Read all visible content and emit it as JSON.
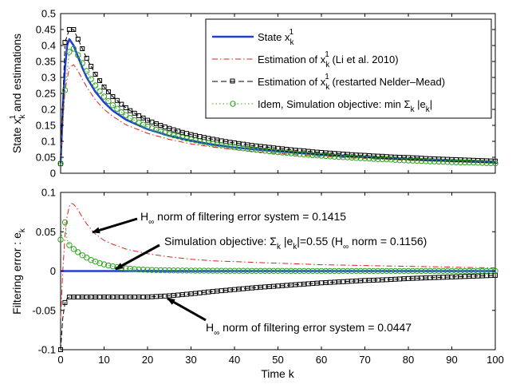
{
  "colors": {
    "state": "#1f3fd6",
    "li": "#e0201b",
    "nm": "#000000",
    "idem": "#2ea31e"
  },
  "chart_data": [
    {
      "type": "line",
      "ylabel": "State x_k^1 and estimations",
      "xlim": [
        0,
        100
      ],
      "ylim": [
        0,
        0.5
      ],
      "xticks": [
        "0",
        "10",
        "20",
        "30",
        "40",
        "50",
        "60",
        "70",
        "80",
        "90",
        "100"
      ],
      "yticks": [
        "0",
        "0.05",
        "0.1",
        "0.15",
        "0.2",
        "0.25",
        "0.3",
        "0.35",
        "0.4",
        "0.45",
        "0.5"
      ],
      "legend": [
        {
          "name": "State x",
          "sub": "k",
          "sup": "1",
          "rest": ""
        },
        {
          "name": "Estimation of x",
          "sub": "k",
          "sup": "1",
          "rest": " (Li et al. 2010)"
        },
        {
          "name": "Estimation of x",
          "sub": "k",
          "sup": "1",
          "rest": " (restarted Nelder–Mead)"
        },
        {
          "name": "Idem, Simulation objective: min Σ",
          "sub": "k",
          "sup": "",
          "rest": " |e",
          "sub2": "k",
          "rest2": "|"
        }
      ],
      "series": [
        {
          "name": "State x_k^1",
          "style": "state",
          "x": [
            0,
            0.5,
            1,
            1.5,
            2,
            3,
            4,
            5,
            6,
            8,
            10,
            12,
            15,
            20,
            25,
            30,
            35,
            40,
            45,
            50,
            55,
            60,
            65,
            70,
            75,
            80,
            85,
            90,
            95,
            100
          ],
          "y": [
            0.03,
            0.2,
            0.33,
            0.4,
            0.42,
            0.4,
            0.365,
            0.33,
            0.3,
            0.255,
            0.222,
            0.196,
            0.168,
            0.138,
            0.117,
            0.102,
            0.09,
            0.081,
            0.074,
            0.068,
            0.063,
            0.058,
            0.054,
            0.051,
            0.048,
            0.045,
            0.042,
            0.04,
            0.038,
            0.036
          ]
        },
        {
          "name": "Estimation of x_k^1 (Li et al. 2010)",
          "style": "li",
          "x": [
            0,
            0.5,
            1,
            2,
            3,
            4,
            5,
            6,
            8,
            10,
            12,
            15,
            20,
            25,
            30,
            35,
            40,
            45,
            50,
            55,
            60,
            65,
            70,
            75,
            80,
            85,
            90,
            95,
            100
          ],
          "y": [
            0.05,
            0.16,
            0.26,
            0.33,
            0.34,
            0.32,
            0.295,
            0.27,
            0.23,
            0.2,
            0.178,
            0.152,
            0.125,
            0.106,
            0.092,
            0.082,
            0.074,
            0.067,
            0.062,
            0.057,
            0.053,
            0.049,
            0.046,
            0.043,
            0.041,
            0.039,
            0.037,
            0.035,
            0.033
          ]
        },
        {
          "name": "Estimation of x_k^1 (restarted Nelder-Mead)",
          "style": "nm",
          "x": [
            0,
            1,
            2,
            3,
            4,
            5,
            6,
            7,
            8,
            9,
            10,
            11,
            12,
            13,
            14,
            15,
            16,
            17,
            18,
            19,
            20,
            22,
            24,
            26,
            28,
            30,
            32,
            34,
            36,
            38,
            40,
            42,
            44,
            46,
            48,
            50,
            52,
            54,
            56,
            58,
            60,
            62,
            64,
            66,
            68,
            70,
            72,
            74,
            76,
            78,
            80,
            82,
            84,
            86,
            88,
            90,
            92,
            94,
            96,
            98,
            100
          ],
          "y": [
            0.03,
            0.41,
            0.45,
            0.45,
            0.42,
            0.39,
            0.36,
            0.335,
            0.31,
            0.29,
            0.27,
            0.255,
            0.24,
            0.228,
            0.216,
            0.205,
            0.196,
            0.188,
            0.18,
            0.173,
            0.166,
            0.155,
            0.145,
            0.136,
            0.128,
            0.121,
            0.115,
            0.109,
            0.104,
            0.099,
            0.095,
            0.091,
            0.087,
            0.084,
            0.081,
            0.078,
            0.075,
            0.072,
            0.07,
            0.067,
            0.065,
            0.063,
            0.061,
            0.059,
            0.057,
            0.056,
            0.054,
            0.053,
            0.051,
            0.05,
            0.049,
            0.048,
            0.046,
            0.045,
            0.044,
            0.043,
            0.042,
            0.041,
            0.04,
            0.039,
            0.038
          ]
        },
        {
          "name": "Idem, Simulation objective: min Sum_k |e_k|",
          "style": "idem",
          "x": [
            0,
            1,
            2,
            3,
            4,
            5,
            6,
            7,
            8,
            9,
            10,
            11,
            12,
            13,
            14,
            15,
            16,
            17,
            18,
            19,
            20,
            22,
            24,
            26,
            28,
            30,
            32,
            34,
            36,
            38,
            40,
            42,
            44,
            46,
            48,
            50,
            52,
            54,
            56,
            58,
            60,
            62,
            64,
            66,
            68,
            70,
            72,
            74,
            76,
            78,
            80,
            82,
            84,
            86,
            88,
            90,
            92,
            94,
            96,
            98,
            100
          ],
          "y": [
            0.03,
            0.26,
            0.38,
            0.39,
            0.37,
            0.345,
            0.32,
            0.295,
            0.275,
            0.257,
            0.24,
            0.226,
            0.213,
            0.202,
            0.191,
            0.182,
            0.173,
            0.166,
            0.159,
            0.152,
            0.146,
            0.136,
            0.127,
            0.119,
            0.112,
            0.106,
            0.1,
            0.095,
            0.09,
            0.086,
            0.082,
            0.078,
            0.075,
            0.072,
            0.069,
            0.066,
            0.064,
            0.061,
            0.059,
            0.057,
            0.055,
            0.053,
            0.051,
            0.05,
            0.048,
            0.047,
            0.045,
            0.044,
            0.043,
            0.041,
            0.04,
            0.039,
            0.038,
            0.037,
            0.036,
            0.035,
            0.034,
            0.034,
            0.033,
            0.032,
            0.031
          ]
        }
      ]
    },
    {
      "type": "line",
      "xlabel": "Time k",
      "ylabel": "Filtering error : e",
      "ylabel_sub": "k",
      "xlim": [
        0,
        100
      ],
      "ylim": [
        -0.1,
        0.1
      ],
      "xticks": [
        "0",
        "10",
        "20",
        "30",
        "40",
        "50",
        "60",
        "70",
        "80",
        "90",
        "100"
      ],
      "yticks": [
        "-0.1",
        "-0.05",
        "0",
        "0.05",
        "0.1"
      ],
      "annotations": [
        {
          "id": "ann1",
          "pre": "H",
          "sub": "∞",
          "post": " norm of filtering error system =  0.1415",
          "x_data": 13,
          "y_data": 0.083
        },
        {
          "id": "ann2",
          "pre": "Simulation objective: Σ",
          "sub": "k",
          "mid": " |e",
          "sub2": "k",
          "mid2": "|=0.55 (H",
          "sub3": "∞",
          "post": " norm = 0.1156)",
          "x_data": 13,
          "y_data": 0.052
        },
        {
          "id": "ann3",
          "pre": "H",
          "sub": "∞",
          "post": " norm of filtering error system = 0.0447",
          "x_data": 36,
          "y_data": -0.078
        }
      ],
      "series": [
        {
          "name": "e_k state",
          "style": "state",
          "x": [
            0,
            100
          ],
          "y": [
            0,
            0
          ]
        },
        {
          "name": "e_k Li et al. 2010",
          "style": "li",
          "x": [
            0,
            0.5,
            1,
            1.5,
            2,
            2.5,
            3,
            4,
            5,
            6,
            7,
            8,
            10,
            12,
            15,
            20,
            25,
            30,
            35,
            40,
            45,
            50,
            55,
            60,
            70,
            80,
            90,
            100
          ],
          "y": [
            -0.06,
            0.0,
            0.045,
            0.07,
            0.082,
            0.086,
            0.085,
            0.078,
            0.068,
            0.06,
            0.053,
            0.047,
            0.039,
            0.034,
            0.028,
            0.022,
            0.018,
            0.015,
            0.013,
            0.012,
            0.011,
            0.01,
            0.009,
            0.008,
            0.007,
            0.006,
            0.005,
            0.004
          ]
        },
        {
          "name": "e_k Nelder-Mead",
          "style": "nm",
          "x": [
            0,
            0.5,
            1,
            1.5,
            2,
            3,
            4,
            5,
            6,
            8,
            10,
            15,
            20,
            25,
            30,
            35,
            40,
            45,
            50,
            55,
            60,
            65,
            70,
            75,
            80,
            85,
            90,
            95,
            100
          ],
          "y": [
            -0.1,
            -0.06,
            -0.04,
            -0.035,
            -0.033,
            -0.033,
            -0.033,
            -0.033,
            -0.033,
            -0.033,
            -0.033,
            -0.033,
            -0.033,
            -0.0315,
            -0.029,
            -0.026,
            -0.0235,
            -0.021,
            -0.019,
            -0.017,
            -0.015,
            -0.0135,
            -0.012,
            -0.011,
            -0.0095,
            -0.0085,
            -0.0075,
            -0.0065,
            -0.0055
          ]
        },
        {
          "name": "e_k Idem",
          "style": "idem",
          "x": [
            0,
            1,
            1.5,
            2,
            3,
            4,
            5,
            6,
            7,
            8,
            9,
            10,
            11,
            12,
            13,
            14,
            15,
            16,
            17,
            18,
            19,
            20,
            22,
            24,
            26,
            28,
            30,
            32,
            34,
            36,
            38,
            40,
            42,
            44,
            46,
            48,
            50,
            52,
            54,
            56,
            58,
            60,
            62,
            64,
            66,
            68,
            70,
            72,
            74,
            76,
            78,
            80,
            82,
            84,
            86,
            88,
            90,
            92,
            94,
            96,
            98,
            100
          ],
          "y": [
            0.04,
            0.062,
            0.04,
            0.033,
            0.028,
            0.024,
            0.02,
            0.017,
            0.014,
            0.012,
            0.01,
            0.0085,
            0.007,
            0.006,
            0.005,
            0.004,
            0.0035,
            0.003,
            0.0025,
            0.002,
            0.0018,
            0.0015,
            0.0012,
            0.001,
            0.0008,
            0.0007,
            0.0006,
            0.0005,
            0.0004,
            0.0004,
            0.0003,
            0.0003,
            0.0003,
            0.0002,
            0.0002,
            0.0002,
            0.0002,
            0.0002,
            0.0001,
            0.0001,
            0.0001,
            0.0001,
            0.0001,
            0.0001,
            0.0001,
            0.0001,
            0.0001,
            0.0001,
            0.0001,
            0.0001,
            0.0001,
            0.0001,
            0.0001,
            0.0001,
            0.0001,
            0.0001,
            0.0001,
            0.0001,
            0.0001,
            0.0001,
            0.0001,
            0.0001
          ]
        }
      ]
    }
  ]
}
